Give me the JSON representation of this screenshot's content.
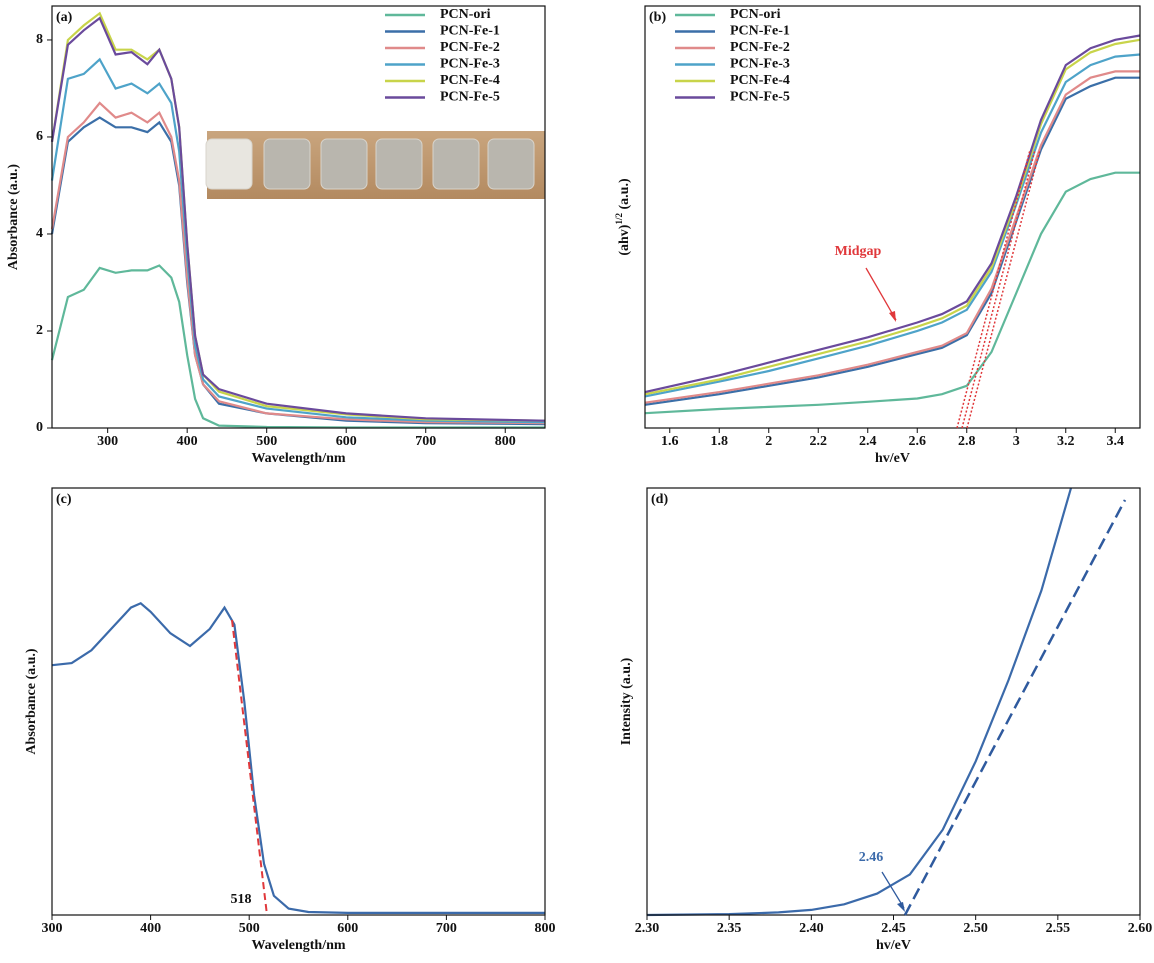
{
  "chart_data": [
    {
      "type": "line",
      "label": "(a)",
      "x_label": "Wavelength/nm",
      "y_label": [
        "Absorbance (a.u.)"
      ],
      "x": [
        230,
        250,
        270,
        290,
        310,
        330,
        350,
        365,
        380,
        390,
        400,
        410,
        420,
        440,
        500,
        600,
        700,
        850
      ],
      "series": [
        {
          "name": "PCN-ori",
          "color": "#5fb89a",
          "values": [
            1.4,
            2.7,
            2.85,
            3.3,
            3.2,
            3.25,
            3.25,
            3.35,
            3.1,
            2.6,
            1.5,
            0.6,
            0.2,
            0.05,
            0.02,
            0.01,
            0.01,
            0.01
          ]
        },
        {
          "name": "PCN-Fe-1",
          "color": "#3b6fa8",
          "values": [
            4.0,
            5.9,
            6.2,
            6.4,
            6.2,
            6.2,
            6.1,
            6.3,
            5.9,
            5.0,
            3.0,
            1.5,
            0.9,
            0.5,
            0.3,
            0.15,
            0.1,
            0.08
          ]
        },
        {
          "name": "PCN-Fe-2",
          "color": "#e08a8a",
          "values": [
            4.1,
            6.0,
            6.3,
            6.7,
            6.4,
            6.5,
            6.3,
            6.5,
            6.0,
            5.1,
            3.1,
            1.5,
            0.9,
            0.55,
            0.3,
            0.18,
            0.12,
            0.1
          ]
        },
        {
          "name": "PCN-Fe-3",
          "color": "#4ea3c9",
          "values": [
            5.1,
            7.2,
            7.3,
            7.6,
            7.0,
            7.1,
            6.9,
            7.1,
            6.7,
            5.7,
            3.5,
            1.7,
            1.0,
            0.65,
            0.4,
            0.22,
            0.15,
            0.12
          ]
        },
        {
          "name": "PCN-Fe-4",
          "color": "#c8d44a",
          "values": [
            5.9,
            8.0,
            8.3,
            8.55,
            7.8,
            7.8,
            7.6,
            7.8,
            7.2,
            6.2,
            3.8,
            1.9,
            1.1,
            0.75,
            0.45,
            0.28,
            0.18,
            0.15
          ]
        },
        {
          "name": "PCN-Fe-5",
          "color": "#6a4a9c",
          "values": [
            5.9,
            7.9,
            8.2,
            8.45,
            7.7,
            7.75,
            7.5,
            7.8,
            7.2,
            6.2,
            3.8,
            1.9,
            1.1,
            0.8,
            0.5,
            0.3,
            0.2,
            0.15
          ]
        }
      ],
      "xlim": [
        230,
        850
      ],
      "xticks": [
        300,
        400,
        500,
        600,
        700,
        800
      ],
      "ylim": [
        0,
        8.7
      ],
      "yticks": [
        0,
        2,
        4,
        6,
        8
      ],
      "legend": "upper right"
    },
    {
      "type": "line",
      "label": "(b)",
      "x_label": "hv/eV",
      "y_label": [
        "(ahv)",
        "1/2",
        " (a.u.)"
      ],
      "annotations": [
        "Midgap"
      ],
      "x": [
        1.5,
        1.8,
        2.0,
        2.2,
        2.4,
        2.6,
        2.7,
        2.8,
        2.9,
        3.0,
        3.1,
        3.2,
        3.3,
        3.4,
        3.5
      ],
      "series": [
        {
          "name": "PCN-ori",
          "color": "#5fb89a",
          "values": [
            0.35,
            0.45,
            0.5,
            0.55,
            0.62,
            0.7,
            0.8,
            1.0,
            1.8,
            3.2,
            4.6,
            5.6,
            5.9,
            6.05,
            6.05
          ]
        },
        {
          "name": "PCN-Fe-1",
          "color": "#3b6fa8",
          "values": [
            0.55,
            0.8,
            1.0,
            1.2,
            1.45,
            1.75,
            1.9,
            2.2,
            3.2,
            4.9,
            6.6,
            7.8,
            8.1,
            8.3,
            8.3
          ]
        },
        {
          "name": "PCN-Fe-2",
          "color": "#e08a8a",
          "values": [
            0.6,
            0.85,
            1.05,
            1.25,
            1.5,
            1.8,
            1.95,
            2.25,
            3.3,
            5.0,
            6.7,
            7.9,
            8.3,
            8.45,
            8.45
          ]
        },
        {
          "name": "PCN-Fe-3",
          "color": "#4ea3c9",
          "values": [
            0.75,
            1.1,
            1.35,
            1.65,
            1.95,
            2.3,
            2.5,
            2.8,
            3.7,
            5.3,
            7.0,
            8.2,
            8.6,
            8.8,
            8.85
          ]
        },
        {
          "name": "PCN-Fe-4",
          "color": "#c8d44a",
          "values": [
            0.8,
            1.15,
            1.45,
            1.75,
            2.05,
            2.4,
            2.6,
            2.9,
            3.8,
            5.4,
            7.2,
            8.5,
            8.9,
            9.1,
            9.2
          ]
        },
        {
          "name": "PCN-Fe-5",
          "color": "#6a4a9c",
          "values": [
            0.85,
            1.25,
            1.55,
            1.85,
            2.15,
            2.5,
            2.7,
            3.0,
            3.9,
            5.5,
            7.3,
            8.6,
            9.0,
            9.2,
            9.3
          ]
        }
      ],
      "xlim": [
        1.5,
        3.5
      ],
      "xticks": [
        1.6,
        1.8,
        2.0,
        2.2,
        2.4,
        2.6,
        2.8,
        3.0,
        3.2,
        3.4
      ],
      "ylim": [
        0,
        10
      ],
      "legend": "upper left"
    },
    {
      "type": "line",
      "label": "(c)",
      "x_label": "Wavelength/nm",
      "y_label": [
        "Absorbance (a.u.)"
      ],
      "annotations": [
        "518"
      ],
      "x": [
        300,
        320,
        340,
        360,
        380,
        390,
        400,
        420,
        440,
        460,
        475,
        485,
        495,
        505,
        515,
        525,
        540,
        560,
        600,
        700,
        800
      ],
      "series": [
        {
          "name": null,
          "color": "#3b6aaa",
          "values": [
            5.85,
            5.9,
            6.2,
            6.7,
            7.2,
            7.3,
            7.1,
            6.6,
            6.3,
            6.7,
            7.2,
            6.8,
            5.0,
            2.8,
            1.2,
            0.45,
            0.15,
            0.07,
            0.05,
            0.05,
            0.05
          ]
        }
      ],
      "xlim": [
        300,
        800
      ],
      "xticks": [
        300,
        400,
        500,
        600,
        700,
        800
      ],
      "ylim": [
        0,
        10
      ]
    },
    {
      "type": "line",
      "label": "(d)",
      "x_label": "hv/eV",
      "y_label": [
        "Intensity (a.u.)"
      ],
      "annotations": [
        "2.46"
      ],
      "x": [
        2.3,
        2.35,
        2.38,
        2.4,
        2.42,
        2.44,
        2.46,
        2.48,
        2.5,
        2.52,
        2.54,
        2.558
      ],
      "series": [
        {
          "name": null,
          "color": "#3b6aaa",
          "values": [
            0,
            0.02,
            0.06,
            0.12,
            0.25,
            0.5,
            0.95,
            2.0,
            3.6,
            5.5,
            7.6,
            10
          ]
        }
      ],
      "xlim": [
        2.3,
        2.6
      ],
      "xticks": [
        {
          "value": 2.3,
          "label": "2.30"
        },
        2.35,
        {
          "value": 2.4,
          "label": "2.40"
        },
        2.45,
        {
          "value": 2.5,
          "label": "2.50"
        },
        2.55,
        {
          "value": 2.6,
          "label": "2.60"
        }
      ],
      "ylim": [
        0,
        10
      ]
    }
  ]
}
